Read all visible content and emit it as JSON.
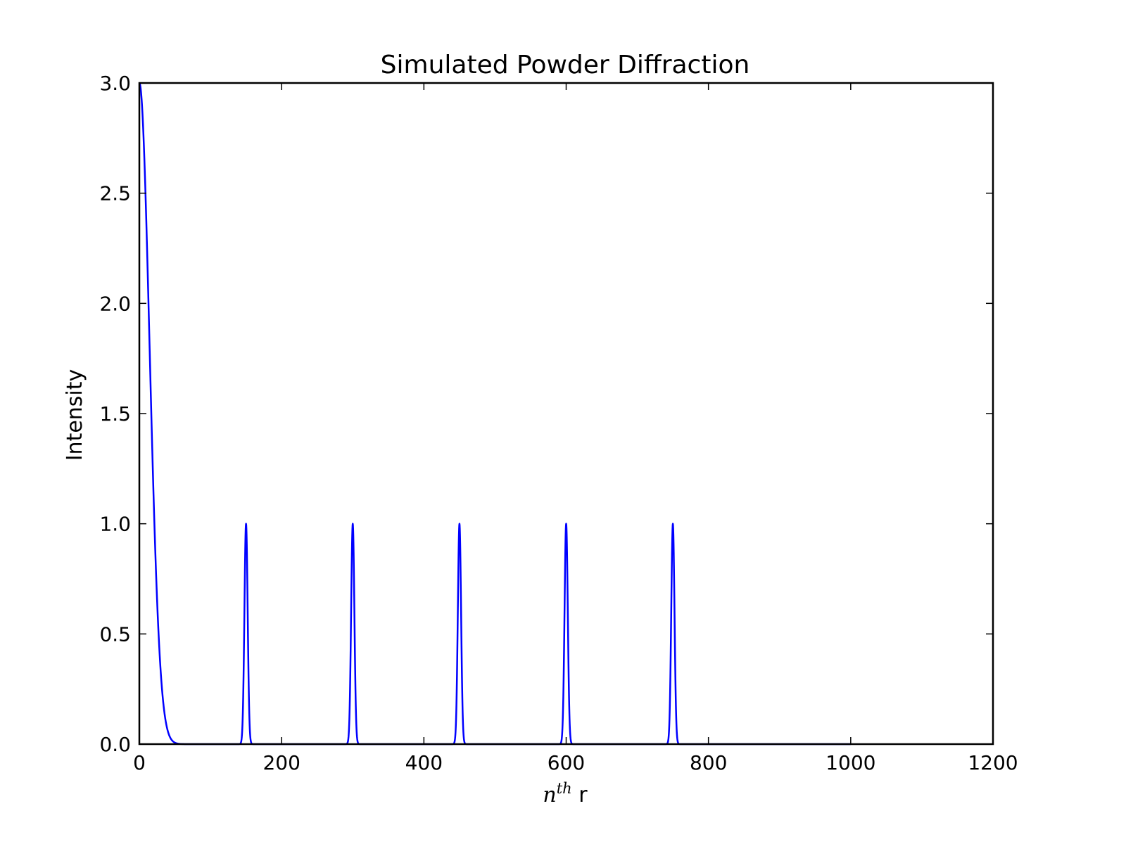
{
  "chart_data": {
    "type": "line",
    "title": "Simulated Powder Diffraction",
    "xlabel": {
      "variable": "n",
      "superscript": "th",
      "suffix": "r"
    },
    "ylabel": "Intensity",
    "xlim": [
      0,
      1200
    ],
    "ylim": [
      0.0,
      3.0
    ],
    "xticks": [
      "0",
      "200",
      "400",
      "600",
      "800",
      "1000",
      "1200"
    ],
    "yticks": [
      "0.0",
      "0.5",
      "1.0",
      "1.5",
      "2.0",
      "2.5",
      "3.0"
    ],
    "grid": false,
    "legend": "none",
    "series": [
      {
        "color": "#0000ff",
        "x_range": [
          0,
          1000
        ],
        "components": [
          {
            "center": 0,
            "height": 3.0,
            "half_width_at_zero": 50
          },
          {
            "center": 150,
            "height": 1.0,
            "half_width_at_zero": 8
          },
          {
            "center": 300,
            "height": 1.0,
            "half_width_at_zero": 8
          },
          {
            "center": 450,
            "height": 1.0,
            "half_width_at_zero": 8
          },
          {
            "center": 600,
            "height": 1.0,
            "half_width_at_zero": 8
          },
          {
            "center": 750,
            "height": 1.0,
            "half_width_at_zero": 8
          }
        ]
      }
    ]
  }
}
